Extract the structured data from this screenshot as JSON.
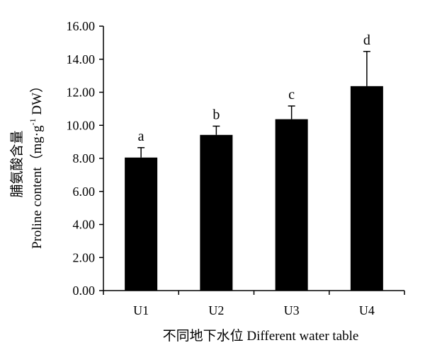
{
  "chart_data": {
    "type": "bar",
    "categories": [
      "U1",
      "U2",
      "U3",
      "U4"
    ],
    "values": [
      8.05,
      9.42,
      10.37,
      12.37
    ],
    "error": [
      0.6,
      0.53,
      0.8,
      2.1
    ],
    "significance": [
      "a",
      "b",
      "c",
      "d"
    ],
    "ylim": [
      0,
      16
    ],
    "yticks": [
      "0.00",
      "2.00",
      "4.00",
      "6.00",
      "8.00",
      "10.00",
      "12.00",
      "14.00",
      "16.00"
    ],
    "ylabel_cn": "脯氨酸含量",
    "ylabel_en": "Proline content（mg·g",
    "ylabel_sup": "-1",
    "ylabel_unit": " DW）",
    "xlabel": "不同地下水位  Different water table",
    "bar_color": "#000000",
    "grid": false,
    "legend": "none"
  }
}
